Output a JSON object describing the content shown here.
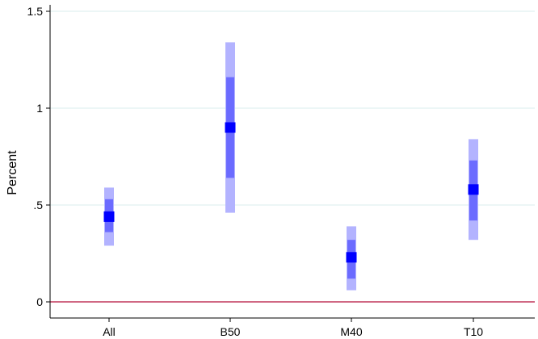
{
  "chart_data": {
    "type": "scatter",
    "title": "",
    "xlabel": "",
    "ylabel": "Percent",
    "categories": [
      "All",
      "B50",
      "M40",
      "T10"
    ],
    "ylim": [
      0,
      1.5
    ],
    "yticks": [
      {
        "value": 0,
        "label": "0"
      },
      {
        "value": 0.5,
        "label": ".5"
      },
      {
        "value": 1,
        "label": "1"
      },
      {
        "value": 1.5,
        "label": "1.5"
      }
    ],
    "series": [
      {
        "points": [
          {
            "category": "All",
            "estimate": 0.44,
            "inner_ci": [
              0.36,
              0.53
            ],
            "outer_ci": [
              0.29,
              0.59
            ]
          },
          {
            "category": "B50",
            "estimate": 0.9,
            "inner_ci": [
              0.64,
              1.16
            ],
            "outer_ci": [
              0.46,
              1.34
            ]
          },
          {
            "category": "M40",
            "estimate": 0.23,
            "inner_ci": [
              0.12,
              0.32
            ],
            "outer_ci": [
              0.06,
              0.39
            ]
          },
          {
            "category": "T10",
            "estimate": 0.58,
            "inner_ci": [
              0.42,
              0.73
            ],
            "outer_ci": [
              0.32,
              0.84
            ]
          }
        ]
      }
    ],
    "reference_line": {
      "value": 0,
      "color": "#c1365a"
    },
    "grid": true,
    "legend": "none",
    "colors": {
      "point": "#0000ff",
      "inner_ci": "#6b6bff",
      "outer_ci": "#b3b3ff",
      "grid": "#d9ecec",
      "axis": "#000000"
    }
  }
}
